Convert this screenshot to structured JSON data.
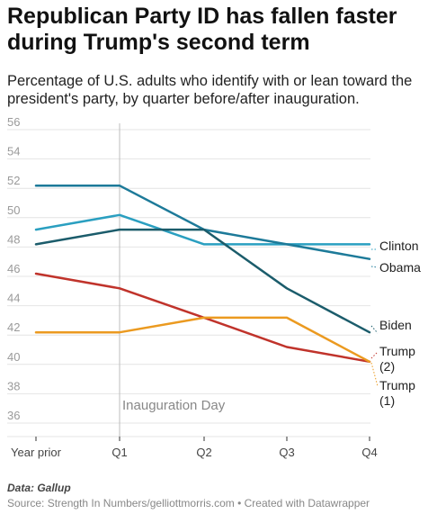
{
  "header": {
    "title": "Republican Party ID has fallen faster during Trump's second term",
    "subtitle": "Percentage of U.S. adults who identify with or lean toward the president's party, by quarter before/after inauguration."
  },
  "annotation": "Inauguration Day",
  "footer": {
    "data_note": "Data: Gallup",
    "source": "Source: Strength In Numbers/gelliottmorris.com • Created with Datawrapper"
  },
  "chart_data": {
    "type": "line",
    "x": [
      "Year prior",
      "Q1",
      "Q2",
      "Q3",
      "Q4"
    ],
    "ylim": [
      35,
      56
    ],
    "yticks": [
      36,
      38,
      40,
      42,
      44,
      46,
      48,
      50,
      52,
      54,
      56
    ],
    "grid": true,
    "legend": "direct-labels-right",
    "series": [
      {
        "name": "Clinton",
        "label": [
          "Clinton"
        ],
        "color": "#2a9fc0",
        "values": [
          49,
          50,
          48,
          48,
          48
        ]
      },
      {
        "name": "Obama",
        "label": [
          "Obama"
        ],
        "color": "#1d7a99",
        "values": [
          52,
          52,
          49,
          48,
          47
        ]
      },
      {
        "name": "Biden",
        "label": [
          "Biden"
        ],
        "color": "#1b5c6b",
        "values": [
          48,
          49,
          49,
          45,
          42
        ]
      },
      {
        "name": "Trump (2)",
        "label": [
          "Trump",
          "(2)"
        ],
        "color": "#c0332b",
        "values": [
          46,
          45,
          43,
          41,
          40
        ]
      },
      {
        "name": "Trump (1)",
        "label": [
          "Trump",
          "(1)"
        ],
        "color": "#eb9a20",
        "values": [
          42,
          42,
          43,
          43,
          40
        ]
      }
    ]
  }
}
